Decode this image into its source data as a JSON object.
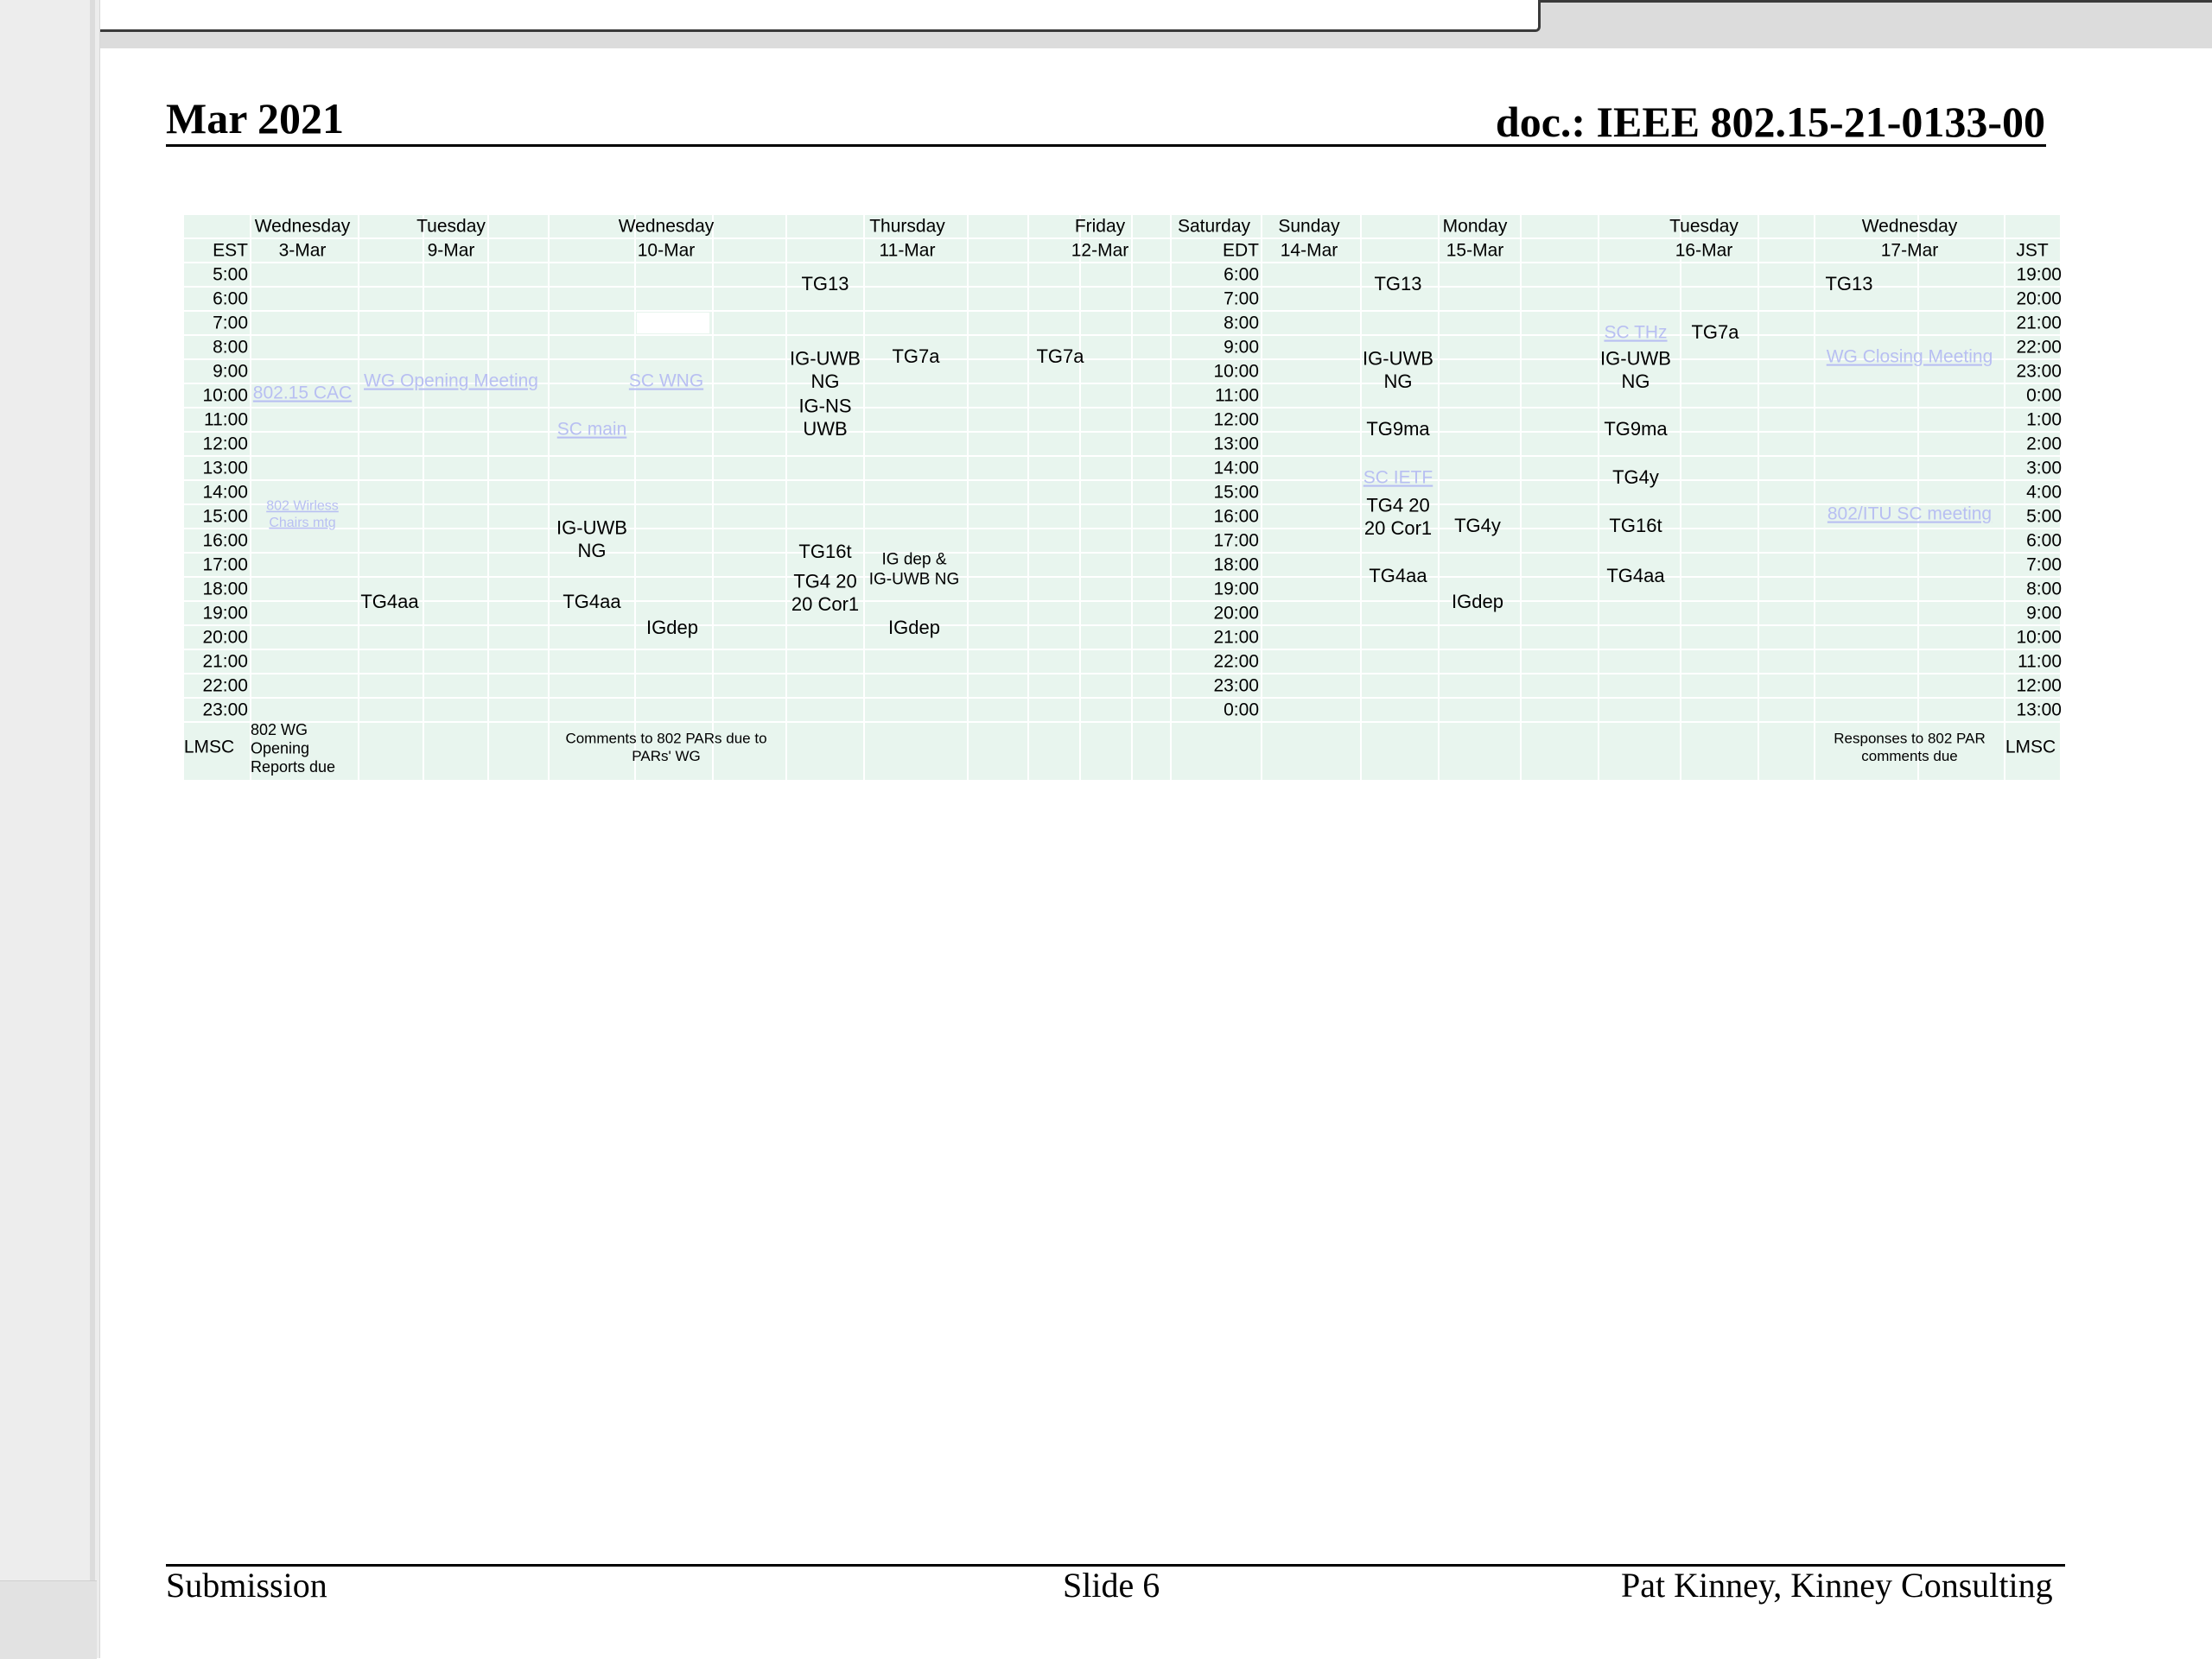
{
  "header": {
    "date": "Mar 2021",
    "doc_id": "doc.: IEEE 802.15-21-0133-00"
  },
  "footer": {
    "left": "Submission",
    "center": "Slide 6",
    "right": "Pat Kinney, Kinney Consulting"
  },
  "schedule": {
    "tz_est": "EST",
    "tz_edt": "EDT",
    "tz_jst": "JST",
    "lmsc": "LMSC",
    "days": [
      {
        "name": "Wednesday",
        "date": "3-Mar"
      },
      {
        "name": "Tuesday",
        "date": "9-Mar"
      },
      {
        "name": "Wednesday",
        "date": "10-Mar"
      },
      {
        "name": "Thursday",
        "date": "11-Mar"
      },
      {
        "name": "Friday",
        "date": "12-Mar"
      },
      {
        "name": "Saturday",
        "date": ""
      },
      {
        "name": "Sunday",
        "date": "14-Mar"
      },
      {
        "name": "Monday",
        "date": "15-Mar"
      },
      {
        "name": "Tuesday",
        "date": "16-Mar"
      },
      {
        "name": "Wednesday",
        "date": "17-Mar"
      }
    ],
    "est_times": [
      "5:00",
      "6:00",
      "7:00",
      "8:00",
      "9:00",
      "10:00",
      "11:00",
      "12:00",
      "13:00",
      "14:00",
      "15:00",
      "16:00",
      "17:00",
      "18:00",
      "19:00",
      "20:00",
      "21:00",
      "22:00",
      "23:00"
    ],
    "edt_times": [
      "6:00",
      "7:00",
      "8:00",
      "9:00",
      "10:00",
      "11:00",
      "12:00",
      "13:00",
      "14:00",
      "15:00",
      "16:00",
      "17:00",
      "18:00",
      "19:00",
      "20:00",
      "21:00",
      "22:00",
      "23:00",
      "0:00"
    ],
    "jst_times": [
      "19:00",
      "20:00",
      "21:00",
      "22:00",
      "23:00",
      "0:00",
      "1:00",
      "2:00",
      "3:00",
      "4:00",
      "5:00",
      "6:00",
      "7:00",
      "8:00",
      "9:00",
      "10:00",
      "11:00",
      "12:00",
      "13:00"
    ],
    "events": [
      {
        "id": "tg13-thu",
        "lines": [
          "TG13"
        ],
        "link": false
      },
      {
        "id": "tg7a-thu",
        "lines": [
          "TG7a"
        ],
        "link": false
      },
      {
        "id": "tg7a-fri",
        "lines": [
          "TG7a"
        ],
        "link": false
      },
      {
        "id": "igu-thu",
        "lines": [
          "IG-UWB",
          "NG"
        ],
        "link": false
      },
      {
        "id": "igns-thu",
        "lines": [
          "IG-NS",
          "UWB"
        ],
        "link": false
      },
      {
        "id": "tg16t-thu",
        "lines": [
          "TG16t"
        ],
        "link": false
      },
      {
        "id": "tg42-thu",
        "lines": [
          "TG4 20",
          "20 Cor1"
        ],
        "link": false
      },
      {
        "id": "igdep-thu",
        "lines": [
          "IG dep &",
          "IG-UWB NG"
        ],
        "link": false
      },
      {
        "id": "igdep2-thu",
        "lines": [
          "IGdep"
        ],
        "link": false
      },
      {
        "id": "cac-wed3",
        "lines": [
          "802.15 CAC"
        ],
        "link": true
      },
      {
        "id": "wchairs-wed3",
        "lines": [
          "802 Wirless",
          "Chairs mtg"
        ],
        "link": true
      },
      {
        "id": "open-tue9",
        "lines": [
          "WG Opening Meeting"
        ],
        "link": true
      },
      {
        "id": "tg4aa-tue9",
        "lines": [
          "TG4aa"
        ],
        "link": false
      },
      {
        "id": "scwng-wed10",
        "lines": [
          "SC WNG"
        ],
        "link": true
      },
      {
        "id": "scmain-wed10",
        "lines": [
          "SC main"
        ],
        "link": true
      },
      {
        "id": "igu-wed10",
        "lines": [
          "IG-UWB",
          "NG"
        ],
        "link": false
      },
      {
        "id": "tg4aa-wed10",
        "lines": [
          "TG4aa"
        ],
        "link": false
      },
      {
        "id": "igdep-wed10",
        "lines": [
          "IGdep"
        ],
        "link": false
      },
      {
        "id": "tg13-mon",
        "lines": [
          "TG13"
        ],
        "link": false
      },
      {
        "id": "igu-mon",
        "lines": [
          "IG-UWB",
          "NG"
        ],
        "link": false
      },
      {
        "id": "tg9ma-mon",
        "lines": [
          "TG9ma"
        ],
        "link": false
      },
      {
        "id": "scietf-mon",
        "lines": [
          "SC IETF"
        ],
        "link": true
      },
      {
        "id": "tg42-mon",
        "lines": [
          "TG4 20",
          "20 Cor1"
        ],
        "link": false
      },
      {
        "id": "tg4y-mon",
        "lines": [
          "TG4y"
        ],
        "link": false
      },
      {
        "id": "tg4aa-mon",
        "lines": [
          "TG4aa"
        ],
        "link": false
      },
      {
        "id": "igdep-mon",
        "lines": [
          "IGdep"
        ],
        "link": false
      },
      {
        "id": "scthz-tue16",
        "lines": [
          "SC THz"
        ],
        "link": true
      },
      {
        "id": "tg7a-tue16",
        "lines": [
          "TG7a"
        ],
        "link": false
      },
      {
        "id": "igu-tue16",
        "lines": [
          "IG-UWB",
          "NG"
        ],
        "link": false
      },
      {
        "id": "tg9ma-tue16",
        "lines": [
          "TG9ma"
        ],
        "link": false
      },
      {
        "id": "tg4y-tue16",
        "lines": [
          "TG4y"
        ],
        "link": false
      },
      {
        "id": "tg16t-tue16",
        "lines": [
          "TG16t"
        ],
        "link": false
      },
      {
        "id": "tg4aa-tue16",
        "lines": [
          "TG4aa"
        ],
        "link": false
      },
      {
        "id": "tg13-wed17",
        "lines": [
          "TG13"
        ],
        "link": false
      },
      {
        "id": "close-wed17",
        "lines": [
          "WG Closing Meeting"
        ],
        "link": true
      },
      {
        "id": "itu-wed17",
        "lines": [
          "802/ITU SC meeting"
        ],
        "link": true
      }
    ],
    "notes": [
      {
        "id": "note-wed3",
        "lines": [
          "802 WG",
          "Opening",
          "Reports due"
        ]
      },
      {
        "id": "note-wed10",
        "lines": [
          "Comments to 802 PARs due to",
          "PARs' WG"
        ]
      },
      {
        "id": "note-wed17",
        "lines": [
          "Responses to 802 PAR",
          "comments due"
        ]
      }
    ],
    "colors": {
      "cell": "#e8f5ee",
      "border": "#ffffff",
      "text": "#000000",
      "link": "#b8bff2"
    }
  }
}
